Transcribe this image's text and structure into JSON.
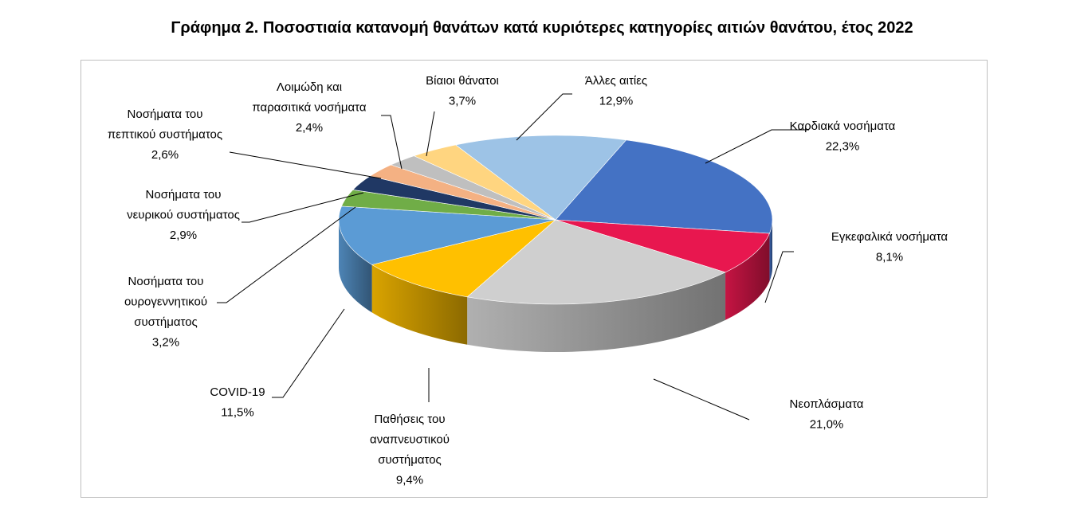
{
  "title": "Γράφημα 2. Ποσοστιαία κατανομή θανάτων κατά κυριότερες κατηγορίες αιτιών θανάτου, έτος 2022",
  "chart_data": {
    "type": "pie",
    "title": "Γράφημα 2. Ποσοστιαία κατανομή θανάτων κατά κυριότερες κατηγορίες αιτιών θανάτου, έτος 2022",
    "slices": [
      {
        "name": "Καρδιακά νοσήματα",
        "value_label": "22,3%",
        "value": 22.3,
        "color": "#4472c4"
      },
      {
        "name": "Εγκεφαλικά νοσήματα",
        "value_label": "8,1%",
        "value": 8.1,
        "color": "#e8174f"
      },
      {
        "name": "Νεοπλάσματα",
        "value_label": "21,0%",
        "value": 21.0,
        "color": "#cfcfcf"
      },
      {
        "name": "Παθήσεις του αναπνευστικού συστήματος",
        "value_label": "9,4%",
        "value": 9.4,
        "color": "#ffc000"
      },
      {
        "name": "COVID-19",
        "value_label": "11,5%",
        "value": 11.5,
        "color": "#5b9bd5"
      },
      {
        "name": "Νοσήματα του ουρογεννητικού συστήματος",
        "value_label": "3,2%",
        "value": 3.2,
        "color": "#70ad47"
      },
      {
        "name": "Νοσήματα του νευρικού συστήματος",
        "value_label": "2,9%",
        "value": 2.9,
        "color": "#203864"
      },
      {
        "name": "Νοσήματα του πεπτικού συστήματος",
        "value_label": "2,6%",
        "value": 2.6,
        "color": "#f4b183"
      },
      {
        "name": "Λοιμώδη και παρασιτικά νοσήματα",
        "value_label": "2,4%",
        "value": 2.4,
        "color": "#bfbfbf"
      },
      {
        "name": "Βίαιοι θάνατοι",
        "value_label": "3,7%",
        "value": 3.7,
        "color": "#ffd580"
      },
      {
        "name": "Άλλες αιτίες",
        "value_label": "12,9%",
        "value": 12.9,
        "color": "#9dc3e6"
      }
    ],
    "label_lines": {
      "Καρδιακά νοσήματα": [
        "Καρδιακά νοσήματα"
      ],
      "Εγκεφαλικά νοσήματα": [
        "Εγκεφαλικά νοσήματα"
      ],
      "Νεοπλάσματα": [
        "Νεοπλάσματα"
      ],
      "Παθήσεις του αναπνευστικού συστήματος": [
        "Παθήσεις του",
        "αναπνευστικού",
        "συστήματος"
      ],
      "COVID-19": [
        "COVID-19"
      ],
      "Νοσήματα του ουρογεννητικού συστήματος": [
        "Νοσήματα του",
        "ουρογεννητικού",
        "συστήματος"
      ],
      "Νοσήματα του νευρικού συστήματος": [
        "Νοσήματα του",
        "νευρικού συστήματος"
      ],
      "Νοσήματα του πεπτικού συστήματος": [
        "Νοσήματα του",
        "πεπτικού συστήματος"
      ],
      "Λοιμώδη και παρασιτικά νοσήματα": [
        "Λοιμώδη και",
        "παρασιτικά νοσήματα"
      ],
      "Βίαιοι θάνατοι": [
        "Βίαιοι θάνατοι"
      ],
      "Άλλες αιτίες": [
        "Άλλες αιτίες"
      ]
    },
    "legend": "none"
  }
}
